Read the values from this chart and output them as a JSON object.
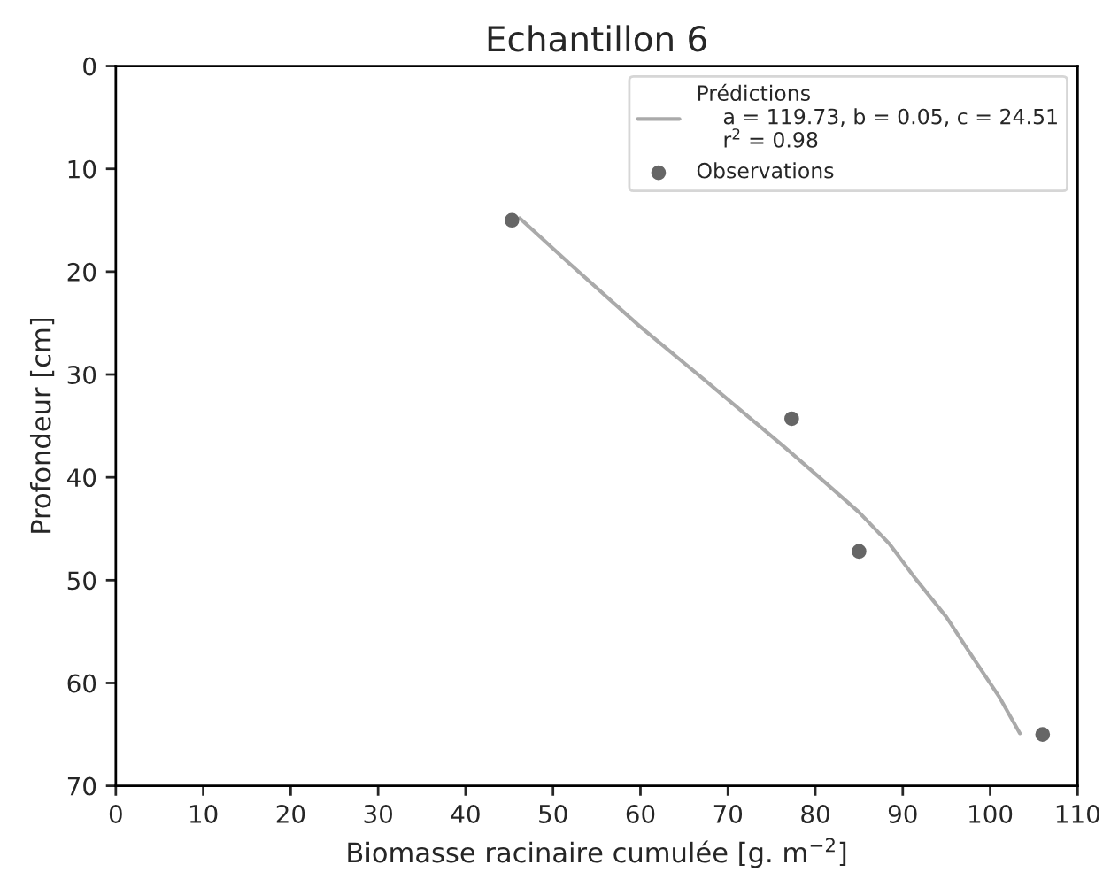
{
  "chart_data": {
    "type": "scatter",
    "title": "Echantillon 6",
    "xlabel": "Biomasse racinaire cumulée [g. m$^{−2}$]",
    "ylabel": "Profondeur [cm]",
    "xlim": [
      0,
      110
    ],
    "xticks": [
      0,
      10,
      20,
      30,
      40,
      50,
      60,
      70,
      80,
      90,
      100,
      110
    ],
    "ylim": [
      70,
      0
    ],
    "yticks": [
      0,
      10,
      20,
      30,
      40,
      50,
      60,
      70
    ],
    "grid": false,
    "legend": "top right",
    "series": [
      {
        "type": "line",
        "name": "Prédictions\n    a = 119.73, b = 0.05, c = 24.51\n    r$^{2}$ = 0.98",
        "color": "#aaaaaa",
        "x": [
          46.2,
          52.0,
          59.9,
          68.0,
          76.4,
          81.0,
          85.0,
          88.5,
          91.5,
          95.0,
          98.0,
          101.0,
          103.4
        ],
        "values": [
          14.8,
          19.3,
          25.3,
          31.0,
          37.0,
          40.4,
          43.4,
          46.5,
          49.9,
          53.6,
          57.5,
          61.3,
          64.9
        ]
      },
      {
        "name": "Observations",
        "color": "#666666",
        "x": [
          45.3,
          77.3,
          85.0,
          106.0
        ],
        "values": [
          15.0,
          34.3,
          47.2,
          65.0
        ]
      }
    ]
  }
}
